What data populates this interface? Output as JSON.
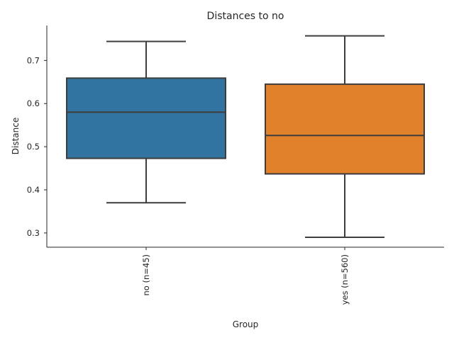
{
  "chart_data": {
    "type": "box",
    "title": "Distances to no",
    "xlabel": "Group",
    "ylabel": "Distance",
    "ylim": [
      0.267,
      0.781
    ],
    "yticks": [
      0.3,
      0.4,
      0.5,
      0.6,
      0.7
    ],
    "ytick_labels": [
      "0.3",
      "0.4",
      "0.5",
      "0.6",
      "0.7"
    ],
    "categories": [
      "no (n=45)",
      "yes (n=560)"
    ],
    "boxes": [
      {
        "name": "no (n=45)",
        "whisker_low": 0.37,
        "q1": 0.473,
        "median": 0.58,
        "q3": 0.659,
        "whisker_high": 0.744,
        "color": "#3274a1"
      },
      {
        "name": "yes (n=560)",
        "whisker_low": 0.29,
        "q1": 0.437,
        "median": 0.526,
        "q3": 0.645,
        "whisker_high": 0.757,
        "color": "#e1812c"
      }
    ],
    "grid": false,
    "legend": false
  }
}
